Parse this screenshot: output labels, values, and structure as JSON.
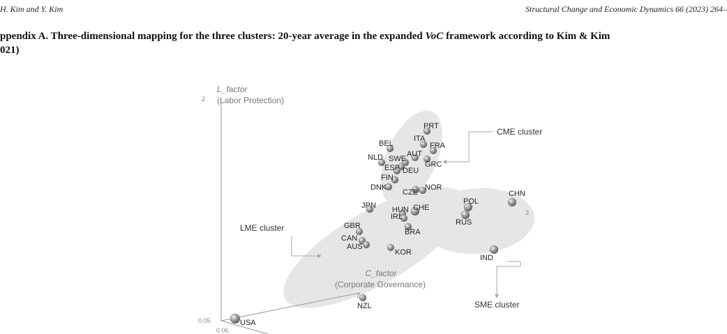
{
  "header": {
    "authors": "H. Kim and Y. Kim",
    "journal": "Structural Change and Economic Dynamics 66 (2023) 264–"
  },
  "appendix": {
    "title_part1": "ppendix A. Three-dimensional mapping for the three clusters: 20-year average in the expanded ",
    "title_italic": "VoC",
    "title_part2": " framework according to Kim & Kim",
    "title_line2": "021)"
  },
  "chart_data": {
    "type": "scatter",
    "axes": {
      "l_factor": {
        "name": "L_factor",
        "desc": "(Labor Protection)",
        "tick_top": "2",
        "tick_origin": "0.05"
      },
      "c_factor": {
        "name": "C_factor",
        "desc": "(Corporate Governance)",
        "tick_mid": "2",
        "tick_origin": "0.06"
      },
      "third_tick": "3"
    },
    "clusters": [
      {
        "name": "CME cluster",
        "color": "#d9d9d9"
      },
      {
        "name": "LME cluster",
        "color": "#d9d9d9"
      },
      {
        "name": "SME cluster",
        "color": "#d9d9d9"
      }
    ],
    "points": [
      {
        "label": "PRT",
        "cluster": "CME cluster"
      },
      {
        "label": "ITA",
        "cluster": "CME cluster"
      },
      {
        "label": "FRA",
        "cluster": "CME cluster"
      },
      {
        "label": "BEL",
        "cluster": "CME cluster"
      },
      {
        "label": "AUT",
        "cluster": "CME cluster"
      },
      {
        "label": "NLD",
        "cluster": "CME cluster"
      },
      {
        "label": "SWE",
        "cluster": "CME cluster"
      },
      {
        "label": "GRC",
        "cluster": "CME cluster"
      },
      {
        "label": "ESP",
        "cluster": "CME cluster"
      },
      {
        "label": "DEU",
        "cluster": "CME cluster"
      },
      {
        "label": "FIN",
        "cluster": "CME cluster"
      },
      {
        "label": "DNK",
        "cluster": "CME cluster"
      },
      {
        "label": "CZE",
        "cluster": "CME cluster"
      },
      {
        "label": "NOR",
        "cluster": "CME cluster"
      },
      {
        "label": "JPN",
        "cluster": "LME cluster"
      },
      {
        "label": "HUN",
        "cluster": "LME cluster"
      },
      {
        "label": "CHE",
        "cluster": "LME cluster"
      },
      {
        "label": "IRL",
        "cluster": "LME cluster"
      },
      {
        "label": "GBR",
        "cluster": "LME cluster"
      },
      {
        "label": "BRA",
        "cluster": "LME cluster"
      },
      {
        "label": "CAN",
        "cluster": "LME cluster"
      },
      {
        "label": "AUS",
        "cluster": "LME cluster"
      },
      {
        "label": "KOR",
        "cluster": "LME cluster"
      },
      {
        "label": "NZL",
        "cluster": "LME cluster"
      },
      {
        "label": "USA",
        "cluster": "LME cluster"
      },
      {
        "label": "POL",
        "cluster": "SME cluster"
      },
      {
        "label": "CHN",
        "cluster": "SME cluster"
      },
      {
        "label": "RUS",
        "cluster": "SME cluster"
      },
      {
        "label": "IND",
        "cluster": "SME cluster"
      }
    ],
    "marker_color": "#8c8c8c"
  }
}
